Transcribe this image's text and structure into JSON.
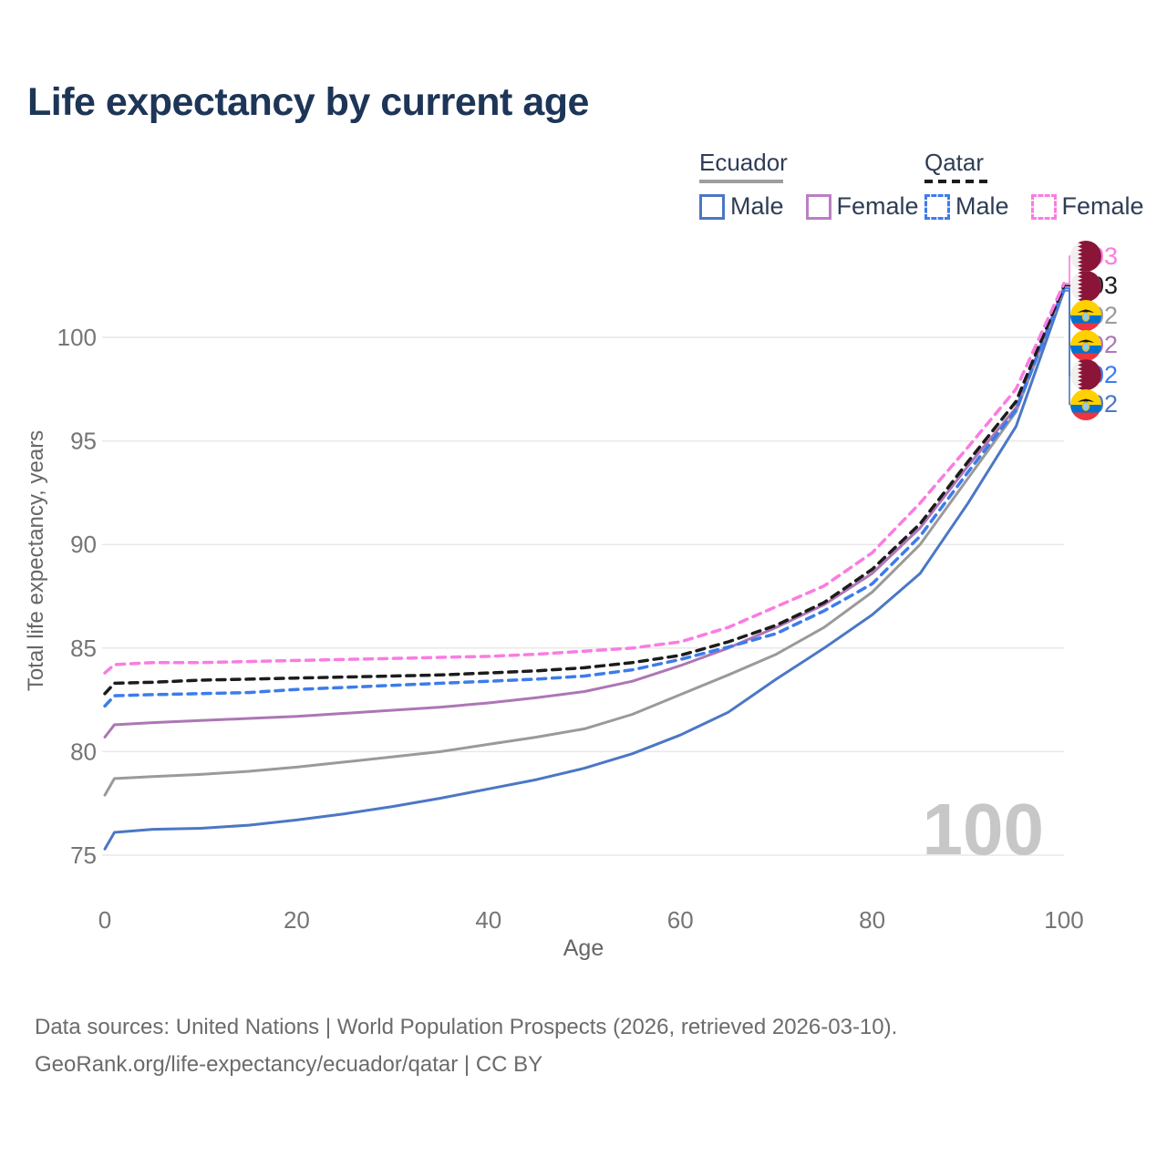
{
  "title": {
    "text": "Life expectancy by current age",
    "color": "#1d3557"
  },
  "legend": {
    "text_color": "#2e3d56",
    "groups": [
      {
        "label": "Ecuador",
        "underline_style": "solid",
        "underline_color": "#9e9e9e",
        "underline_width": 92,
        "items": [
          {
            "label": "Male",
            "color": "#4b77c5",
            "style": "solid"
          },
          {
            "label": "Female",
            "color": "#bb7fc4",
            "style": "solid"
          }
        ]
      },
      {
        "label": "Qatar",
        "underline_style": "dashed",
        "underline_color": "#1c1c1c",
        "underline_width": 74,
        "items": [
          {
            "label": "Male",
            "color": "#3c7cec",
            "style": "dashed"
          },
          {
            "label": "Female",
            "color": "#fa7ce1",
            "style": "dashed"
          }
        ]
      }
    ]
  },
  "chart_data": {
    "type": "line",
    "title": "Life expectancy by current age",
    "xlabel": "Age",
    "ylabel": "Total life expectancy, years",
    "x_ticks": [
      0,
      20,
      40,
      60,
      80,
      100
    ],
    "y_ticks": [
      75,
      80,
      85,
      90,
      95,
      100
    ],
    "xlim": [
      0,
      100
    ],
    "ylim": [
      74.5,
      103.5
    ],
    "grid": true,
    "legend_position": "top-right",
    "axis_text_color": "#757575",
    "grid_color": "#e8e8e8",
    "watermark": "100",
    "watermark_color": "#c7c7c7",
    "ages": [
      0,
      1,
      5,
      10,
      15,
      20,
      25,
      30,
      35,
      40,
      45,
      50,
      55,
      60,
      65,
      70,
      75,
      80,
      85,
      90,
      95,
      100
    ],
    "series": [
      {
        "name": "Ecuador Male",
        "country": "Ecuador",
        "sex": "Male",
        "color": "#4b77c5",
        "dash": "solid",
        "values": [
          75.3,
          76.1,
          76.25,
          76.3,
          76.45,
          76.7,
          77.0,
          77.35,
          77.75,
          78.2,
          78.65,
          79.2,
          79.9,
          80.8,
          81.9,
          83.5,
          85.0,
          86.6,
          88.6,
          92.0,
          95.7,
          102.25
        ]
      },
      {
        "name": "Ecuador",
        "country": "Ecuador",
        "sex": "Both",
        "color": "#9a9a9a",
        "dash": "solid",
        "values": [
          77.9,
          78.7,
          78.8,
          78.9,
          79.05,
          79.25,
          79.5,
          79.75,
          80.0,
          80.35,
          80.7,
          81.1,
          81.8,
          82.75,
          83.7,
          84.7,
          86.0,
          87.7,
          90.0,
          93.2,
          96.4,
          102.38
        ]
      },
      {
        "name": "Ecuador Female",
        "country": "Ecuador",
        "sex": "Female",
        "color": "#ad76b5",
        "dash": "solid",
        "values": [
          80.7,
          81.3,
          81.4,
          81.5,
          81.6,
          81.7,
          81.85,
          82.0,
          82.15,
          82.35,
          82.6,
          82.9,
          83.4,
          84.15,
          85.0,
          86.0,
          87.1,
          88.6,
          90.8,
          93.8,
          96.6,
          102.42
        ]
      },
      {
        "name": "Qatar Male",
        "country": "Qatar",
        "sex": "Male",
        "color": "#3c7cec",
        "dash": "dashed",
        "values": [
          82.2,
          82.7,
          82.75,
          82.8,
          82.85,
          83.0,
          83.1,
          83.2,
          83.3,
          83.4,
          83.5,
          83.65,
          83.95,
          84.45,
          85.05,
          85.7,
          86.8,
          88.1,
          90.4,
          93.5,
          96.5,
          102.35
        ]
      },
      {
        "name": "Qatar",
        "country": "Qatar",
        "sex": "Both",
        "color": "#1c1c1c",
        "dash": "dashed",
        "values": [
          82.8,
          83.3,
          83.35,
          83.45,
          83.5,
          83.55,
          83.6,
          83.65,
          83.7,
          83.8,
          83.9,
          84.05,
          84.3,
          84.65,
          85.3,
          86.1,
          87.2,
          88.8,
          91.0,
          94.0,
          96.9,
          102.5
        ]
      },
      {
        "name": "Qatar Female",
        "country": "Qatar",
        "sex": "Female",
        "color": "#fa7ce1",
        "dash": "dashed",
        "values": [
          83.8,
          84.2,
          84.3,
          84.3,
          84.35,
          84.4,
          84.45,
          84.5,
          84.55,
          84.6,
          84.7,
          84.85,
          85.0,
          85.3,
          86.0,
          87.0,
          88.0,
          89.6,
          92.0,
          94.7,
          97.5,
          102.6
        ]
      }
    ],
    "end_labels": [
      {
        "text": "103",
        "series": "Qatar Female",
        "flag": "qatar",
        "color": "#fa7ce1"
      },
      {
        "text": "103",
        "series": "Qatar",
        "flag": "qatar",
        "color": "#1c1c1c"
      },
      {
        "text": "102",
        "series": "Ecuador",
        "flag": "ecuador",
        "color": "#9a9a9a"
      },
      {
        "text": "102",
        "series": "Ecuador Female",
        "flag": "ecuador",
        "color": "#ad76b5"
      },
      {
        "text": "102",
        "series": "Qatar Male",
        "flag": "qatar",
        "color": "#3c7cec"
      },
      {
        "text": "102",
        "series": "Ecuador Male",
        "flag": "ecuador",
        "color": "#4b77c5"
      }
    ]
  },
  "footer": {
    "color": "#6b6b6b",
    "line1": "Data sources: United Nations | World Population Prospects (2026, retrieved 2026-03-10).",
    "line2": "GeoRank.org/life-expectancy/ecuador/qatar | CC BY"
  }
}
